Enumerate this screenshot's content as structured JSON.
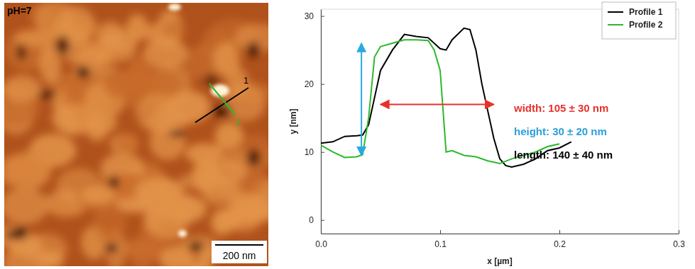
{
  "image_panel": {
    "label": "pH=7",
    "scale_bar": "200 nm",
    "profile_labels": [
      "1",
      "2"
    ]
  },
  "chart_data": {
    "type": "line",
    "x_label": "x [µm]",
    "y_label": "y [nm]",
    "xlim": [
      0,
      0.3
    ],
    "xticks": [
      {
        "value": 0,
        "label": "0.0"
      },
      0.1,
      0.2,
      0.3
    ],
    "ylim": [
      -2,
      31
    ],
    "yticks": [
      0,
      10,
      20,
      30
    ],
    "legend": "upper right",
    "series": [
      {
        "name": "Profile 1",
        "color": "#000000",
        "x": [
          0,
          0.01,
          0.02,
          0.03,
          0.035,
          0.04,
          0.045,
          0.05,
          0.06,
          0.07,
          0.08,
          0.09,
          0.1,
          0.105,
          0.11,
          0.12,
          0.125,
          0.13,
          0.135,
          0.14,
          0.145,
          0.15,
          0.155,
          0.16,
          0.17,
          0.18,
          0.19,
          0.2,
          0.21
        ],
        "values": [
          11.3,
          11.5,
          12.3,
          12.4,
          12.5,
          14,
          18,
          22,
          25,
          27.3,
          27,
          26.8,
          25.2,
          25,
          26.5,
          28.2,
          28,
          25,
          20,
          16,
          12,
          9,
          8,
          7.8,
          8.2,
          9,
          10.2,
          10.6,
          11.5
        ]
      },
      {
        "name": "Profile 2",
        "color": "#2db82d",
        "x": [
          0,
          0.01,
          0.02,
          0.03,
          0.035,
          0.04,
          0.045,
          0.05,
          0.06,
          0.07,
          0.08,
          0.09,
          0.095,
          0.1,
          0.105,
          0.11,
          0.12,
          0.13,
          0.14,
          0.15,
          0.16,
          0.17,
          0.18,
          0.19,
          0.2
        ],
        "values": [
          11,
          10,
          9.2,
          9.3,
          9.6,
          15,
          24,
          25.5,
          26,
          26.5,
          26.5,
          26.4,
          25,
          22,
          10,
          10.2,
          9.5,
          9.3,
          8.7,
          8.3,
          9,
          9.5,
          10,
          10.8,
          11.2
        ]
      }
    ],
    "annotations": [
      {
        "text": "width: 105 ± 30 nm",
        "color": "#e8302a"
      },
      {
        "text": "height: 30 ± 20 nm",
        "color": "#2aa0d8"
      },
      {
        "text": "length: 140 ± 40 nm",
        "color": "#000000"
      }
    ],
    "arrows": [
      {
        "x": [
          0.05,
          0.145
        ],
        "y": [
          17,
          17
        ],
        "color": "#e8302a"
      },
      {
        "x": [
          0.034,
          0.034
        ],
        "y": [
          26,
          9.5
        ],
        "color": "#29a9e0"
      }
    ]
  }
}
